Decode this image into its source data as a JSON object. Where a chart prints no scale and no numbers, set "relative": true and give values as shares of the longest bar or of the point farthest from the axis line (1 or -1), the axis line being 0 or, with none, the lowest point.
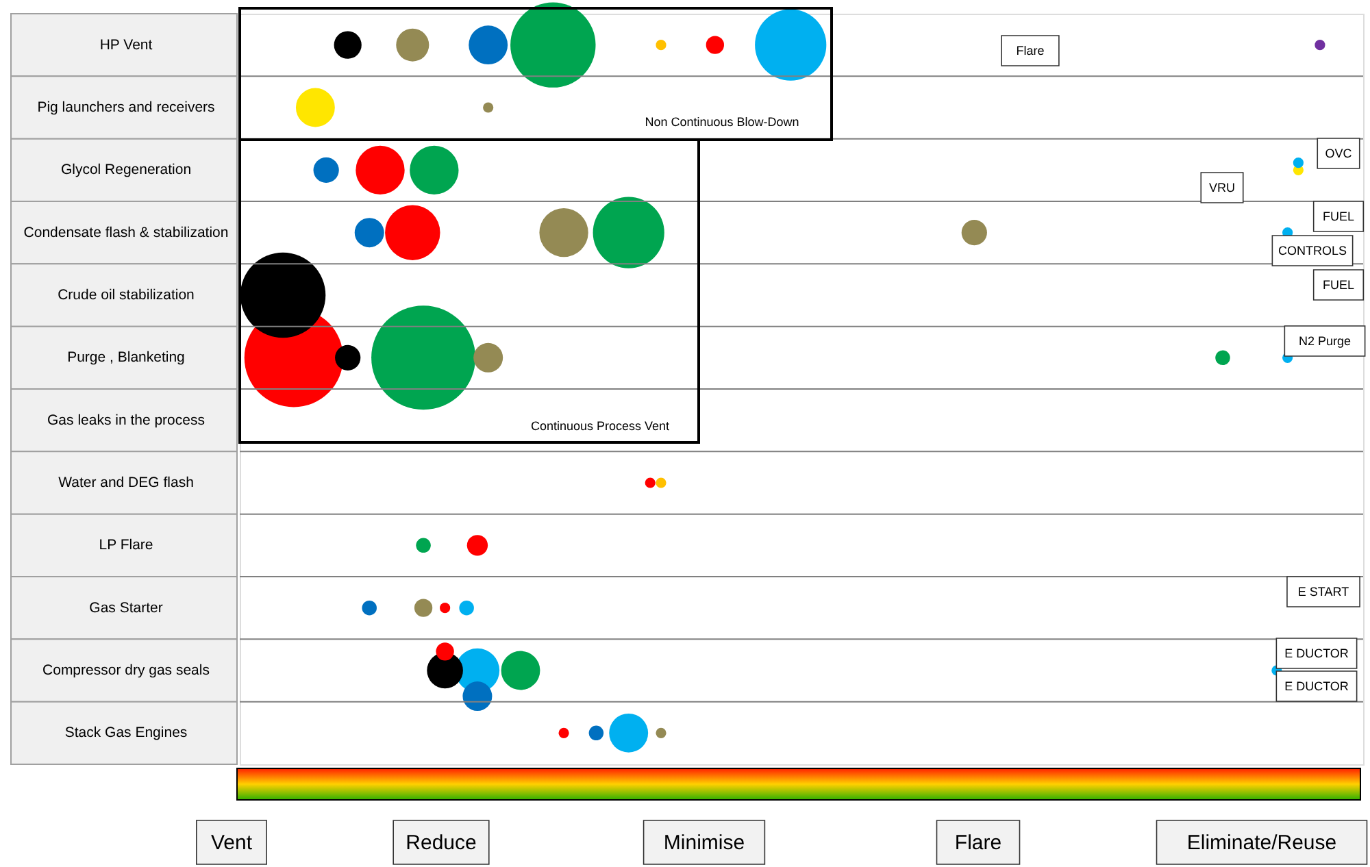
{
  "chart_data": {
    "type": "bubble",
    "orientation": "horizontal",
    "relative": true,
    "grid": "y",
    "categories": [
      "HP Vent",
      "Pig launchers and receivers",
      "Glycol Regeneration",
      "Condensate flash & stabilization",
      "Crude oil stabilization",
      "Purge , Blanketing",
      "Gas leaks in the process",
      "Water and DEG flash",
      "LP Flare",
      "Gas Starter",
      "Compressor dry gas seals",
      "Stack Gas Engines"
    ],
    "series": [
      {
        "color": "#000000",
        "values": [
          0.1,
          null,
          null,
          null,
          0.04,
          0.1,
          null,
          null,
          null,
          null,
          0.19,
          null
        ],
        "sizes": [
          0.07,
          null,
          null,
          null,
          0.67,
          0.06,
          null,
          null,
          null,
          null,
          0.12,
          null
        ]
      },
      {
        "color": "#948a54",
        "values": [
          0.16,
          0.23,
          null,
          0.3,
          null,
          0.23,
          null,
          null,
          null,
          0.17,
          null,
          0.39
        ],
        "sizes": [
          0.1,
          0.01,
          null,
          0.22,
          null,
          0.08,
          null,
          null,
          null,
          0.03,
          null,
          0.01
        ]
      },
      {
        "color": "#948a54",
        "values": [
          null,
          null,
          null,
          0.68,
          null,
          null,
          null,
          null,
          null,
          null,
          null,
          null
        ],
        "sizes": [
          null,
          null,
          null,
          0.06,
          null,
          null,
          null,
          null,
          null,
          null,
          null,
          null
        ]
      },
      {
        "color": "#0070c0",
        "values": [
          0.23,
          null,
          0.08,
          0.12,
          null,
          null,
          null,
          null,
          null,
          0.12,
          0.22,
          0.33
        ],
        "sizes": [
          0.14,
          null,
          0.06,
          0.08,
          null,
          null,
          null,
          null,
          null,
          0.02,
          0.08,
          0.02
        ]
      },
      {
        "color": "#00a550",
        "values": [
          0.29,
          null,
          0.18,
          0.36,
          null,
          0.17,
          null,
          null,
          0.17,
          null,
          0.26,
          null
        ],
        "sizes": [
          0.67,
          null,
          0.22,
          0.47,
          null,
          1,
          null,
          null,
          0.02,
          null,
          0.14,
          null
        ]
      },
      {
        "color": "#00a550",
        "values": [
          null,
          null,
          null,
          null,
          null,
          0.91,
          null,
          null,
          null,
          null,
          null,
          null
        ],
        "sizes": [
          null,
          null,
          null,
          null,
          null,
          0.02,
          null,
          null,
          null,
          null,
          null,
          null
        ]
      },
      {
        "color": "#ffc000",
        "values": [
          0.39,
          null,
          null,
          null,
          null,
          null,
          null,
          0.39,
          null,
          null,
          null,
          null
        ],
        "sizes": [
          0.01,
          null,
          null,
          null,
          null,
          null,
          null,
          0.01,
          null,
          null,
          null,
          null
        ]
      },
      {
        "color": "#ffe600",
        "values": [
          null,
          0.07,
          0.98,
          null,
          null,
          null,
          null,
          null,
          null,
          null,
          null,
          null
        ],
        "sizes": [
          null,
          0.14,
          0.01,
          null,
          null,
          null,
          null,
          null,
          null,
          null,
          null,
          null
        ]
      },
      {
        "color": "#ff0000",
        "values": [
          0.44,
          null,
          0.13,
          0.16,
          null,
          0.05,
          null,
          0.38,
          0.22,
          0.19,
          0.19,
          0.3
        ],
        "sizes": [
          0.03,
          null,
          0.22,
          0.28,
          null,
          0.9,
          null,
          0.01,
          0.04,
          0.01,
          0.03,
          0.01
        ]
      },
      {
        "color": "#00b0f0",
        "values": [
          0.51,
          null,
          0.98,
          0.97,
          null,
          0.97,
          null,
          null,
          null,
          0.21,
          0.22,
          0.36
        ],
        "sizes": [
          0.47,
          null,
          0.01,
          0.01,
          null,
          0.01,
          null,
          null,
          null,
          0.02,
          0.18,
          0.14
        ]
      },
      {
        "color": "#00b0f0",
        "values": [
          null,
          null,
          null,
          null,
          null,
          null,
          null,
          null,
          null,
          null,
          0.96,
          null
        ],
        "sizes": [
          null,
          null,
          null,
          null,
          null,
          null,
          null,
          null,
          null,
          null,
          0.01,
          null
        ]
      },
      {
        "color": "#7030a0",
        "values": [
          1,
          null,
          null,
          null,
          null,
          null,
          null,
          null,
          null,
          null,
          null,
          null
        ],
        "sizes": [
          0.01,
          null,
          null,
          null,
          null,
          null,
          null,
          null,
          null,
          null,
          null,
          null
        ]
      }
    ],
    "annotations": [
      "Non Continuous Blow-Down",
      "Continuous Process Vent",
      "Flare",
      "VRU",
      "OVC",
      "FUEL",
      "CONTROLS",
      "FUEL",
      "N2 Purge",
      "E START",
      "E DUCTOR",
      "E DUCTOR",
      "Vent",
      "Reduce",
      "Minimise",
      "Flare",
      "Eliminate/Reuse"
    ]
  }
}
